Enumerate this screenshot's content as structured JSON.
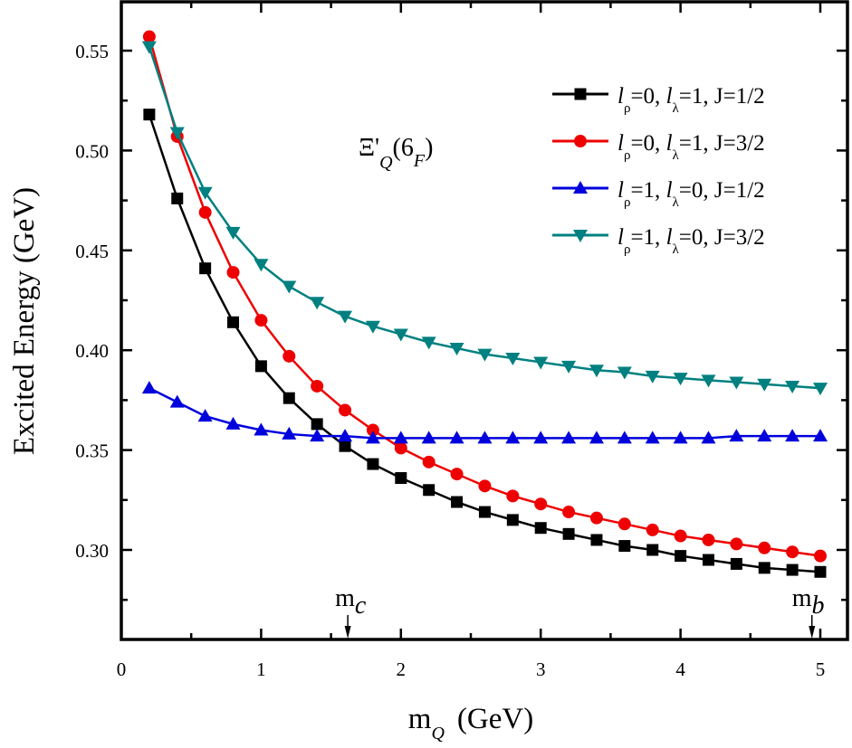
{
  "chart_data": {
    "type": "line",
    "title": "",
    "xlabel": "m",
    "xlabel_sub": "Q",
    "xlabel_unit": "(GeV)",
    "ylabel": "Excited Energy (GeV)",
    "xlim": [
      0,
      5.1
    ],
    "ylim": [
      0.25,
      0.575
    ],
    "xticks": [
      0,
      1,
      2,
      3,
      4,
      5
    ],
    "xtick_labels": [
      "0",
      "1",
      "2",
      "3",
      "4",
      "5"
    ],
    "yticks": [
      0.3,
      0.35,
      0.4,
      0.45,
      0.5,
      0.55
    ],
    "ytick_labels": [
      "0.30",
      "0.35",
      "0.40",
      "0.45",
      "0.50",
      "0.55"
    ],
    "grid": false,
    "legend_position": "top-right",
    "x": [
      0.2,
      0.4,
      0.6,
      0.8,
      1.0,
      1.2,
      1.4,
      1.6,
      1.8,
      2.0,
      2.2,
      2.4,
      2.6,
      2.8,
      3.0,
      3.2,
      3.4,
      3.6,
      3.8,
      4.0,
      4.2,
      4.4,
      4.6,
      4.8,
      5.0
    ],
    "series": [
      {
        "name": "l_ρ=0, l_λ=1, J=1/2",
        "legend": {
          "l1": "l",
          "s1": "ρ",
          "t1": "=0, ",
          "l2": "l",
          "s2": "λ",
          "t2": "=1, J=1/2"
        },
        "color": "#000000",
        "marker": "square",
        "values": [
          0.518,
          0.476,
          0.441,
          0.414,
          0.392,
          0.376,
          0.363,
          0.352,
          0.343,
          0.336,
          0.33,
          0.324,
          0.319,
          0.315,
          0.311,
          0.308,
          0.305,
          0.302,
          0.3,
          0.297,
          0.295,
          0.293,
          0.291,
          0.29,
          0.289
        ]
      },
      {
        "name": "l_ρ=0, l_λ=1, J=3/2",
        "legend": {
          "l1": "l",
          "s1": "ρ",
          "t1": "=0, ",
          "l2": "l",
          "s2": "λ",
          "t2": "=1, J=3/2"
        },
        "color": "#ee0000",
        "marker": "circle",
        "values": [
          0.557,
          0.507,
          0.469,
          0.439,
          0.415,
          0.397,
          0.382,
          0.37,
          0.36,
          0.351,
          0.344,
          0.338,
          0.332,
          0.327,
          0.323,
          0.319,
          0.316,
          0.313,
          0.31,
          0.307,
          0.305,
          0.303,
          0.301,
          0.299,
          0.297
        ]
      },
      {
        "name": "l_ρ=1, l_λ=0, J=1/2",
        "legend": {
          "l1": "l",
          "s1": "ρ",
          "t1": "=1, ",
          "l2": "l",
          "s2": "λ",
          "t2": "=0, J=1/2"
        },
        "color": "#0000dd",
        "marker": "triangle-up",
        "values": [
          0.381,
          0.374,
          0.367,
          0.363,
          0.36,
          0.358,
          0.357,
          0.357,
          0.356,
          0.356,
          0.356,
          0.356,
          0.356,
          0.356,
          0.356,
          0.356,
          0.356,
          0.356,
          0.356,
          0.356,
          0.356,
          0.357,
          0.357,
          0.357,
          0.357
        ]
      },
      {
        "name": "l_ρ=1, l_λ=0, J=3/2",
        "legend": {
          "l1": "l",
          "s1": "ρ",
          "t1": "=1, ",
          "l2": "l",
          "s2": "λ",
          "t2": "=0, J=3/2"
        },
        "color": "#008080",
        "marker": "triangle-down",
        "values": [
          0.552,
          0.509,
          0.479,
          0.459,
          0.443,
          0.432,
          0.424,
          0.417,
          0.412,
          0.408,
          0.404,
          0.401,
          0.398,
          0.396,
          0.394,
          0.392,
          0.39,
          0.389,
          0.387,
          0.386,
          0.385,
          0.384,
          0.383,
          0.382,
          0.381
        ]
      }
    ],
    "annotations": {
      "particle": {
        "main": "Ξ'",
        "sub": "Q",
        "paren_open": "(6",
        "paren_sub": "F",
        "paren_close": ")"
      },
      "mc": {
        "main": "m",
        "sub": "c",
        "x": 1.62
      },
      "mb": {
        "main": "m",
        "sub": "b",
        "x": 4.94
      }
    }
  }
}
